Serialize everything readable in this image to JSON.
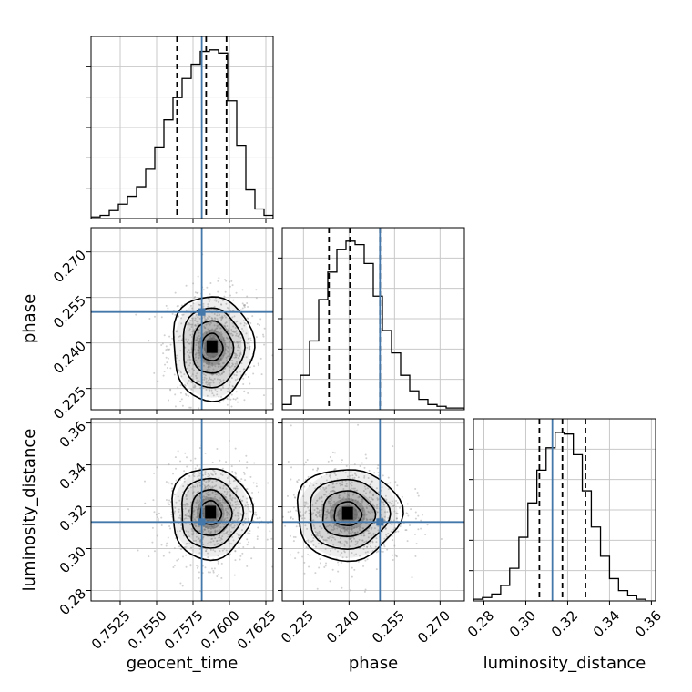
{
  "chart_data": {
    "type": "corner",
    "grid": true,
    "parameters": [
      "geocent_time",
      "phase",
      "luminosity_distance"
    ],
    "axes": {
      "geocent_time": {
        "label": "geocent_time",
        "range": [
          0.7505,
          0.763
        ],
        "ticks": [
          0.7525,
          0.755,
          0.7575,
          0.76,
          0.7625
        ],
        "tick_labels": [
          "0.7525",
          "0.7550",
          "0.7575",
          "0.7600",
          "0.7625"
        ]
      },
      "phase": {
        "label": "phase",
        "range": [
          0.218,
          0.278
        ],
        "ticks": [
          0.225,
          0.24,
          0.255,
          0.27
        ],
        "tick_labels": [
          "0.225",
          "0.240",
          "0.255",
          "0.270"
        ]
      },
      "luminosity_distance": {
        "label": "luminosity_distance",
        "range": [
          0.275,
          0.362
        ],
        "ticks": [
          0.28,
          0.3,
          0.32,
          0.34,
          0.36
        ],
        "tick_labels": [
          "0.28",
          "0.30",
          "0.32",
          "0.34",
          "0.36"
        ]
      }
    },
    "truths": {
      "geocent_time": 0.7581,
      "phase": 0.2502,
      "luminosity_distance": 0.3127
    },
    "quantiles": {
      "geocent_time": [
        0.7564,
        0.7584,
        0.7598
      ],
      "phase": [
        0.2334,
        0.2403,
        0.2502
      ],
      "luminosity_distance": [
        0.3065,
        0.3175,
        0.3285
      ]
    },
    "histograms": {
      "geocent_time": {
        "edges": [
          0.7505,
          0.751125,
          0.75175,
          0.752375,
          0.753,
          0.753625,
          0.75425,
          0.754875,
          0.7555,
          0.756125,
          0.75675,
          0.757375,
          0.758,
          0.758625,
          0.75925,
          0.759875,
          0.7605,
          0.761125,
          0.76175,
          0.762375,
          0.763
        ],
        "counts": [
          1,
          2,
          5,
          9,
          14,
          20,
          31,
          45,
          62,
          76,
          88,
          97,
          105,
          106,
          104,
          74,
          46,
          18,
          6,
          2
        ]
      },
      "phase": {
        "edges": [
          0.218,
          0.221,
          0.224,
          0.227,
          0.23,
          0.233,
          0.236,
          0.239,
          0.242,
          0.245,
          0.248,
          0.251,
          0.254,
          0.257,
          0.26,
          0.263,
          0.266,
          0.269,
          0.272,
          0.275,
          0.278
        ],
        "counts": [
          3,
          8,
          20,
          40,
          64,
          80,
          93,
          98,
          96,
          85,
          66,
          46,
          33,
          20,
          11,
          6,
          3,
          2,
          1,
          1
        ]
      },
      "luminosity_distance": {
        "edges": [
          0.275,
          0.2793,
          0.2837,
          0.288,
          0.2923,
          0.2967,
          0.301,
          0.3053,
          0.3097,
          0.314,
          0.3183,
          0.3227,
          0.327,
          0.3313,
          0.3357,
          0.34,
          0.3443,
          0.3487,
          0.353,
          0.3573,
          0.362
        ],
        "counts": [
          1,
          2,
          4,
          9,
          19,
          37,
          57,
          76,
          89,
          98,
          97,
          85,
          64,
          43,
          26,
          13,
          6,
          3,
          1,
          0
        ]
      }
    },
    "pairs": [
      {
        "x": "geocent_time",
        "y": "phase",
        "center": [
          0.7588,
          0.2385
        ],
        "spread": [
          0.0012,
          0.0075
        ]
      },
      {
        "x": "geocent_time",
        "y": "luminosity_distance",
        "center": [
          0.7587,
          0.317
        ],
        "spread": [
          0.0012,
          0.0095
        ]
      },
      {
        "x": "phase",
        "y": "luminosity_distance",
        "center": [
          0.2395,
          0.3165
        ],
        "spread": [
          0.0075,
          0.0095
        ]
      }
    ],
    "colors": {
      "truth": "#4477aa",
      "line": "#000000",
      "grid": "#c8c8c8",
      "scatter": "#9a9a9a"
    }
  }
}
